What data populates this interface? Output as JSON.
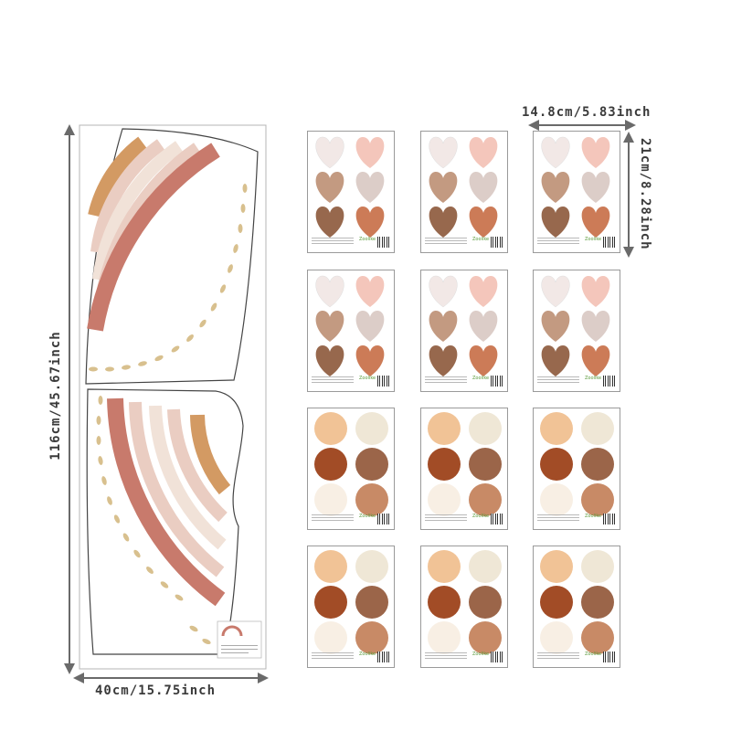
{
  "dimensions": {
    "panel_height": "116cm/45.67inch",
    "panel_width": "40cm/15.75inch",
    "sheet_width": "14.8cm/5.83inch",
    "sheet_height": "21cm/8.28inch"
  },
  "colors": {
    "terracotta": "#c87a6c",
    "blush": "#eacdc2",
    "cream": "#f1e2d8",
    "ochre": "#d39a63",
    "dots": "#d8c08e",
    "heart_pale": "#f2e8e6",
    "heart_pink": "#f4c6bb",
    "heart_tan": "#c39a81",
    "heart_greige": "#dccdc8",
    "heart_brown": "#97684d",
    "heart_rust": "#cc7b57",
    "circle_peach": "#f1c396",
    "circle_ivory": "#efe7d6",
    "circle_rust": "#a24c26",
    "circle_brown": "#9b6549",
    "circle_cream": "#f8efe4",
    "circle_tan": "#c88a66"
  },
  "sheets": {
    "hearts_count": 6,
    "circles_count": 6
  }
}
